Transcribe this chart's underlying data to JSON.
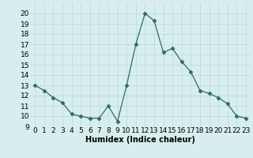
{
  "x": [
    0,
    1,
    2,
    3,
    4,
    5,
    6,
    7,
    8,
    9,
    10,
    11,
    12,
    13,
    14,
    15,
    16,
    17,
    18,
    19,
    20,
    21,
    22,
    23
  ],
  "y": [
    13,
    12.5,
    11.8,
    11.3,
    10.2,
    10.0,
    9.8,
    9.8,
    11.0,
    9.5,
    13.0,
    17.0,
    20.0,
    19.3,
    16.2,
    16.6,
    15.3,
    14.3,
    12.5,
    12.2,
    11.8,
    11.2,
    10.0,
    9.8
  ],
  "line_color": "#2e6b5e",
  "marker": "D",
  "marker_size": 2.5,
  "bg_color": "#d8eeee",
  "grid_color": "#b8d8d8",
  "xlabel": "Humidex (Indice chaleur)",
  "ylim": [
    9,
    21
  ],
  "xlim": [
    -0.5,
    23.5
  ],
  "yticks": [
    9,
    10,
    11,
    12,
    13,
    14,
    15,
    16,
    17,
    18,
    19,
    20
  ],
  "xticks": [
    0,
    1,
    2,
    3,
    4,
    5,
    6,
    7,
    8,
    9,
    10,
    11,
    12,
    13,
    14,
    15,
    16,
    17,
    18,
    19,
    20,
    21,
    22,
    23
  ],
  "label_fontsize": 7,
  "tick_fontsize": 6.5
}
